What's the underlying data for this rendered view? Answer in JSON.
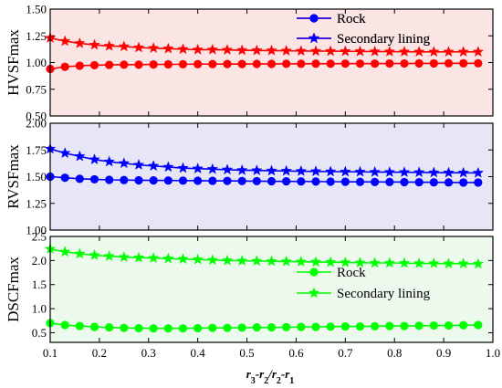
{
  "chart_data": [
    {
      "type": "line",
      "ylabel": "HVSFmax",
      "ylim": [
        0.5,
        1.5
      ],
      "yticks": [
        "0.50",
        "0.75",
        "1.00",
        "1.25",
        "1.50"
      ],
      "xlim": [
        0.1,
        1.0
      ],
      "background": "#fbe4e4",
      "legend_position": "top-right",
      "series": [
        {
          "name": "Rock",
          "marker": "circle",
          "color": "#ff0000",
          "x": [
            0.1,
            0.13,
            0.16,
            0.19,
            0.22,
            0.25,
            0.28,
            0.31,
            0.34,
            0.37,
            0.4,
            0.43,
            0.46,
            0.49,
            0.52,
            0.55,
            0.58,
            0.61,
            0.64,
            0.67,
            0.7,
            0.73,
            0.76,
            0.79,
            0.82,
            0.85,
            0.88,
            0.91,
            0.94,
            0.97
          ],
          "values": [
            0.94,
            0.96,
            0.97,
            0.975,
            0.978,
            0.98,
            0.98,
            0.982,
            0.983,
            0.984,
            0.985,
            0.985,
            0.986,
            0.986,
            0.987,
            0.987,
            0.988,
            0.988,
            0.989,
            0.989,
            0.99,
            0.99,
            0.99,
            0.991,
            0.991,
            0.992,
            0.992,
            0.993,
            0.993,
            0.993
          ]
        },
        {
          "name": "Secondary lining",
          "marker": "star",
          "color": "#ff0000",
          "x": [
            0.1,
            0.13,
            0.16,
            0.19,
            0.22,
            0.25,
            0.28,
            0.31,
            0.34,
            0.37,
            0.4,
            0.43,
            0.46,
            0.49,
            0.52,
            0.55,
            0.58,
            0.61,
            0.64,
            0.67,
            0.7,
            0.73,
            0.76,
            0.79,
            0.82,
            0.85,
            0.88,
            0.91,
            0.94,
            0.97
          ],
          "values": [
            1.23,
            1.2,
            1.18,
            1.165,
            1.155,
            1.15,
            1.14,
            1.135,
            1.13,
            1.125,
            1.12,
            1.12,
            1.118,
            1.115,
            1.113,
            1.112,
            1.11,
            1.108,
            1.107,
            1.106,
            1.105,
            1.104,
            1.103,
            1.102,
            1.101,
            1.1,
            1.1,
            1.1,
            1.1,
            1.1
          ]
        }
      ]
    },
    {
      "type": "line",
      "ylabel": "RVSFmax",
      "ylim": [
        1.0,
        2.0
      ],
      "yticks": [
        "1.00",
        "1.25",
        "1.50",
        "1.75",
        "2.00"
      ],
      "xlim": [
        0.1,
        1.0
      ],
      "background": "#e6e6f7",
      "legend_position": "top-right",
      "series": [
        {
          "name": "Rock",
          "marker": "circle",
          "color": "#0000ff",
          "x": [
            0.1,
            0.13,
            0.16,
            0.19,
            0.22,
            0.25,
            0.28,
            0.31,
            0.34,
            0.37,
            0.4,
            0.43,
            0.46,
            0.49,
            0.52,
            0.55,
            0.58,
            0.61,
            0.64,
            0.67,
            0.7,
            0.73,
            0.76,
            0.79,
            0.82,
            0.85,
            0.88,
            0.91,
            0.94,
            0.97
          ],
          "values": [
            1.5,
            1.49,
            1.48,
            1.475,
            1.47,
            1.468,
            1.466,
            1.465,
            1.464,
            1.463,
            1.462,
            1.461,
            1.46,
            1.459,
            1.458,
            1.457,
            1.456,
            1.455,
            1.454,
            1.453,
            1.452,
            1.451,
            1.45,
            1.45,
            1.449,
            1.448,
            1.447,
            1.446,
            1.445,
            1.445
          ]
        },
        {
          "name": "Secondary lining",
          "marker": "star",
          "color": "#0000ff",
          "x": [
            0.1,
            0.13,
            0.16,
            0.19,
            0.22,
            0.25,
            0.28,
            0.31,
            0.34,
            0.37,
            0.4,
            0.43,
            0.46,
            0.49,
            0.52,
            0.55,
            0.58,
            0.61,
            0.64,
            0.67,
            0.7,
            0.73,
            0.76,
            0.79,
            0.82,
            0.85,
            0.88,
            0.91,
            0.94,
            0.97
          ],
          "values": [
            1.76,
            1.72,
            1.69,
            1.66,
            1.64,
            1.625,
            1.61,
            1.6,
            1.59,
            1.58,
            1.575,
            1.57,
            1.565,
            1.56,
            1.558,
            1.555,
            1.553,
            1.551,
            1.549,
            1.547,
            1.546,
            1.545,
            1.543,
            1.542,
            1.541,
            1.54,
            1.538,
            1.537,
            1.536,
            1.535
          ]
        }
      ]
    },
    {
      "type": "line",
      "ylabel": "DSCFmax",
      "ylim": [
        0.3,
        2.5
      ],
      "yticks": [
        "0.5",
        "1.0",
        "1.5",
        "2.0",
        "2.5"
      ],
      "ytick_values": [
        0.5,
        1.0,
        1.5,
        2.0,
        2.5
      ],
      "xlim": [
        0.1,
        1.0
      ],
      "xticks": [
        "0.1",
        "0.2",
        "0.3",
        "0.4",
        "0.5",
        "0.6",
        "0.7",
        "0.8",
        "0.9",
        "1.0"
      ],
      "background": "#eef9ee",
      "legend_position": "center-right",
      "series": [
        {
          "name": "Rock",
          "marker": "circle",
          "color": "#00ff00",
          "x": [
            0.1,
            0.13,
            0.16,
            0.19,
            0.22,
            0.25,
            0.28,
            0.31,
            0.34,
            0.37,
            0.4,
            0.43,
            0.46,
            0.49,
            0.52,
            0.55,
            0.58,
            0.61,
            0.64,
            0.67,
            0.7,
            0.73,
            0.76,
            0.79,
            0.82,
            0.85,
            0.88,
            0.91,
            0.94,
            0.97
          ],
          "values": [
            0.7,
            0.66,
            0.64,
            0.62,
            0.61,
            0.6,
            0.595,
            0.59,
            0.59,
            0.59,
            0.595,
            0.6,
            0.6,
            0.605,
            0.61,
            0.61,
            0.615,
            0.62,
            0.62,
            0.625,
            0.63,
            0.63,
            0.635,
            0.64,
            0.64,
            0.645,
            0.65,
            0.65,
            0.655,
            0.66
          ]
        },
        {
          "name": "Secondary lining",
          "marker": "star",
          "color": "#00ff00",
          "x": [
            0.1,
            0.13,
            0.16,
            0.19,
            0.22,
            0.25,
            0.28,
            0.31,
            0.34,
            0.37,
            0.4,
            0.43,
            0.46,
            0.49,
            0.52,
            0.55,
            0.58,
            0.61,
            0.64,
            0.67,
            0.7,
            0.73,
            0.76,
            0.79,
            0.82,
            0.85,
            0.88,
            0.91,
            0.94,
            0.97
          ],
          "values": [
            2.24,
            2.18,
            2.14,
            2.11,
            2.09,
            2.07,
            2.06,
            2.05,
            2.04,
            2.03,
            2.02,
            2.01,
            2.0,
            1.995,
            1.99,
            1.985,
            1.98,
            1.975,
            1.97,
            1.965,
            1.96,
            1.955,
            1.95,
            1.95,
            1.945,
            1.94,
            1.94,
            1.935,
            1.935,
            1.93
          ]
        }
      ]
    }
  ],
  "xlabel": {
    "r3": "r",
    "s3": "3",
    "minus1": "-",
    "r2a": "r",
    "s2a": "2",
    "slash": "/",
    "r2b": "r",
    "s2b": "2",
    "minus2": "-",
    "r1": "r",
    "s1": "1"
  }
}
